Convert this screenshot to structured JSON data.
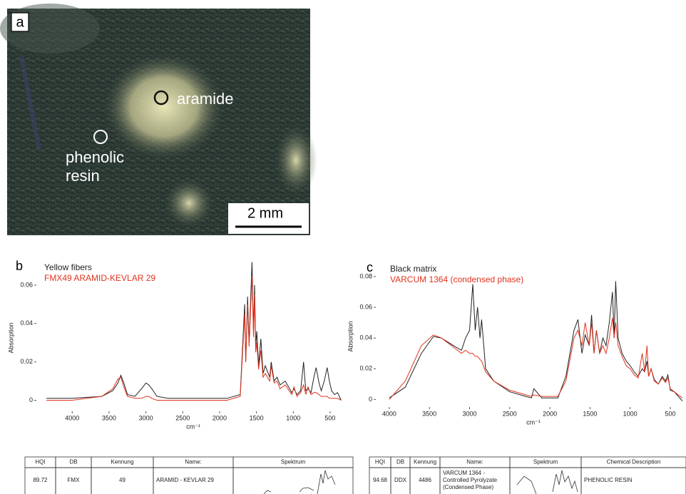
{
  "photo": {
    "panel_label": "a",
    "labels": [
      "aramide",
      "phenolic",
      "resin"
    ],
    "scale_bar": "2 mm"
  },
  "chart_data": [
    {
      "type": "line",
      "panel_label": "b",
      "y_label": "Absorption",
      "x_label": "cm⁻¹",
      "x": [
        4350,
        4000,
        3600,
        3450,
        3380,
        3340,
        3300,
        3250,
        3150,
        3060,
        3000,
        2960,
        2920,
        2850,
        2700,
        2400,
        2100,
        1900,
        1720,
        1660,
        1645,
        1620,
        1600,
        1560,
        1540,
        1525,
        1510,
        1495,
        1470,
        1440,
        1410,
        1380,
        1320,
        1300,
        1260,
        1220,
        1180,
        1110,
        1020,
        990,
        950,
        900,
        860,
        830,
        800,
        760,
        720,
        690,
        650,
        620,
        580,
        540,
        510,
        480,
        440,
        400,
        350
      ],
      "series": [
        {
          "name": "Yellow fibers",
          "color": "#222222",
          "values": [
            0.001,
            0.001,
            0.002,
            0.005,
            0.009,
            0.013,
            0.009,
            0.003,
            0.002,
            0.006,
            0.009,
            0.008,
            0.006,
            0.002,
            0.001,
            0.001,
            0.001,
            0.001,
            0.003,
            0.05,
            0.02,
            0.054,
            0.03,
            0.072,
            0.035,
            0.06,
            0.028,
            0.036,
            0.018,
            0.032,
            0.014,
            0.018,
            0.012,
            0.02,
            0.01,
            0.012,
            0.008,
            0.01,
            0.004,
            0.006,
            0.003,
            0.005,
            0.02,
            0.005,
            0.006,
            0.004,
            0.012,
            0.017,
            0.009,
            0.005,
            0.01,
            0.017,
            0.01,
            0.005,
            0.003,
            0.004,
            0.0
          ]
        },
        {
          "name": "FMX49 ARAMID-KEVLAR 29",
          "color": "#e0321e",
          "values": [
            0.0,
            0.0,
            0.002,
            0.006,
            0.011,
            0.012,
            0.007,
            0.002,
            0.001,
            0.001,
            0.002,
            0.002,
            0.001,
            0.0,
            0.0,
            0.0,
            0.0,
            0.0,
            0.002,
            0.045,
            0.02,
            0.05,
            0.028,
            0.065,
            0.033,
            0.055,
            0.025,
            0.03,
            0.016,
            0.026,
            0.012,
            0.014,
            0.01,
            0.018,
            0.009,
            0.01,
            0.006,
            0.008,
            0.003,
            0.007,
            0.002,
            0.004,
            0.008,
            0.003,
            0.007,
            0.003,
            0.004,
            0.004,
            0.003,
            0.002,
            0.002,
            0.002,
            0.001,
            0.001,
            0.001,
            0.001,
            0.0
          ]
        }
      ],
      "xlim": [
        4380,
        335
      ],
      "xticks": [
        4000,
        3500,
        3000,
        2500,
        2000,
        1500,
        1000,
        500
      ],
      "ylim": [
        -0.005,
        0.07
      ],
      "yticks": [
        0,
        0.02,
        0.04,
        0.06
      ],
      "grid": false
    },
    {
      "type": "line",
      "panel_label": "c",
      "y_label": "Absorption",
      "x_label": "cm⁻¹",
      "x": [
        4000,
        3800,
        3600,
        3450,
        3350,
        3200,
        3100,
        3050,
        3000,
        2960,
        2930,
        2900,
        2870,
        2850,
        2800,
        2700,
        2500,
        2300,
        2230,
        2200,
        2100,
        1900,
        1800,
        1700,
        1650,
        1600,
        1560,
        1510,
        1480,
        1450,
        1420,
        1380,
        1340,
        1300,
        1260,
        1220,
        1200,
        1180,
        1150,
        1100,
        1050,
        1000,
        950,
        900,
        850,
        820,
        790,
        770,
        740,
        700,
        650,
        600,
        560,
        530,
        500,
        450,
        400,
        350
      ],
      "series": [
        {
          "name": "Black matrix",
          "color": "#222222",
          "values": [
            0.001,
            0.008,
            0.03,
            0.041,
            0.04,
            0.035,
            0.032,
            0.04,
            0.045,
            0.075,
            0.045,
            0.06,
            0.04,
            0.052,
            0.02,
            0.012,
            0.005,
            0.002,
            0.001,
            0.007,
            0.001,
            0.001,
            0.015,
            0.045,
            0.052,
            0.03,
            0.042,
            0.035,
            0.055,
            0.03,
            0.045,
            0.03,
            0.04,
            0.035,
            0.05,
            0.07,
            0.04,
            0.077,
            0.04,
            0.03,
            0.025,
            0.022,
            0.018,
            0.015,
            0.02,
            0.018,
            0.025,
            0.015,
            0.02,
            0.013,
            0.01,
            0.015,
            0.012,
            0.016,
            0.006,
            0.005,
            0.002,
            -0.001
          ]
        },
        {
          "name": "VARCUM 1364 (condensed phase)",
          "color": "#e0321e",
          "values": [
            0.0,
            0.012,
            0.035,
            0.042,
            0.04,
            0.034,
            0.03,
            0.032,
            0.03,
            0.03,
            0.028,
            0.028,
            0.026,
            0.025,
            0.018,
            0.012,
            0.006,
            0.003,
            0.002,
            0.003,
            0.002,
            0.002,
            0.012,
            0.04,
            0.045,
            0.035,
            0.05,
            0.035,
            0.05,
            0.03,
            0.045,
            0.03,
            0.035,
            0.03,
            0.04,
            0.053,
            0.04,
            0.05,
            0.035,
            0.028,
            0.022,
            0.02,
            0.016,
            0.014,
            0.03,
            0.018,
            0.035,
            0.015,
            0.02,
            0.012,
            0.01,
            0.014,
            0.011,
            0.014,
            0.007,
            0.005,
            0.003,
            0.001
          ]
        }
      ],
      "xlim": [
        4070,
        340
      ],
      "xticks": [
        4000,
        3500,
        3000,
        2500,
        2000,
        1500,
        1000,
        500
      ],
      "ylim": [
        -0.004,
        0.086
      ],
      "yticks": [
        0,
        0.02,
        0.04,
        0.06,
        0.08
      ],
      "grid": false
    }
  ],
  "tables": [
    {
      "header": [
        "HQI",
        "DB",
        "Kennung",
        "Name:",
        "Spektrum"
      ],
      "rows": [
        [
          "89.72",
          "FMX",
          "49",
          "ARAMID -  KEVLAR 29",
          ""
        ]
      ]
    },
    {
      "header": [
        "HQI",
        "DB",
        "Kennung",
        "Name:",
        "Spektrum",
        "Chemical Description"
      ],
      "rows": [
        [
          "94.68",
          "DDX",
          "4486",
          [
            "VARCUM 1364 -",
            "Controlled Pyrolyzate",
            "(Condensed Phase)"
          ],
          "",
          "PHENOLIC RESIN"
        ]
      ]
    }
  ]
}
